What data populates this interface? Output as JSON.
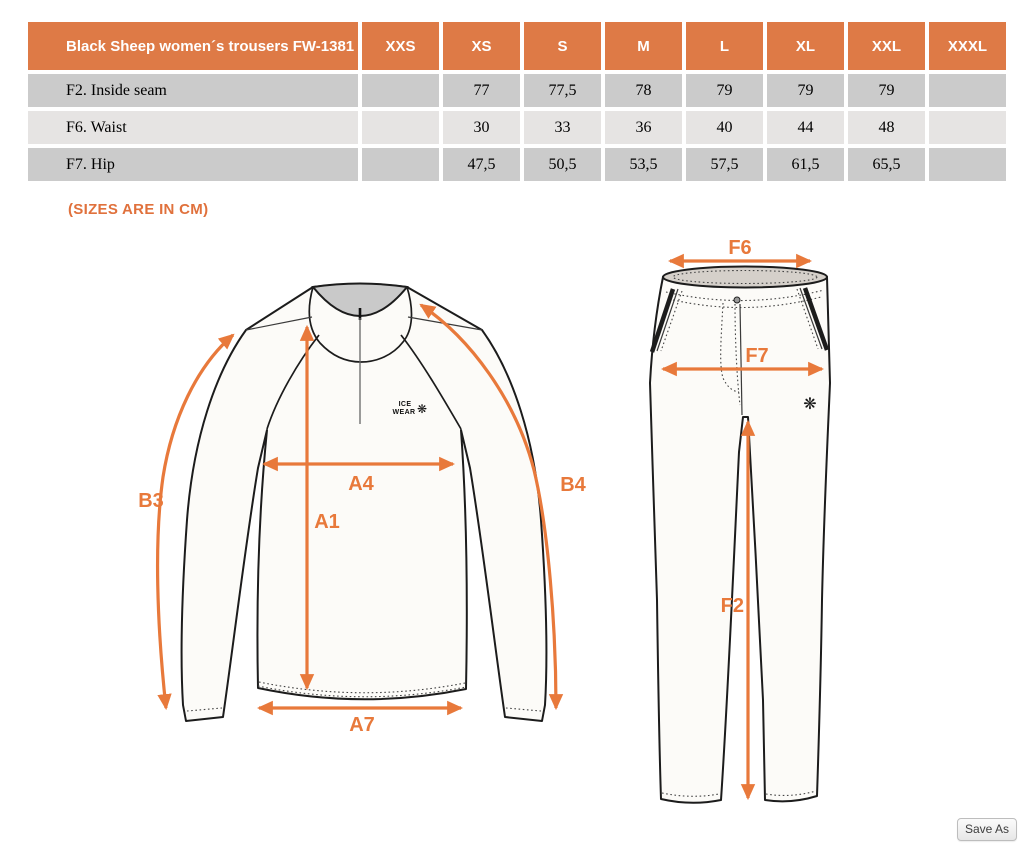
{
  "table": {
    "title": "Black Sheep women´s trousers FW-1381",
    "columns": [
      "XXS",
      "XS",
      "S",
      "M",
      "L",
      "XL",
      "XXL",
      "XXXL"
    ],
    "rows": [
      {
        "label": "F2. Inside seam",
        "values": [
          "",
          "77",
          "77,5",
          "78",
          "79",
          "79",
          "79",
          ""
        ]
      },
      {
        "label": "F6. Waist",
        "values": [
          "",
          "30",
          "33",
          "36",
          "40",
          "44",
          "48",
          ""
        ]
      },
      {
        "label": "F7. Hip",
        "values": [
          "",
          "47,5",
          "50,5",
          "53,5",
          "57,5",
          "61,5",
          "65,5",
          ""
        ]
      }
    ]
  },
  "note": "(SIZES ARE IN CM)",
  "diagram": {
    "shirt": {
      "labels": {
        "b3": "B3",
        "a4": "A4",
        "a1": "A1",
        "b4": "B4",
        "a7": "A7"
      },
      "logo_line1": "ICE",
      "logo_line2": "WEAR",
      "logo_icon": "snowflake-icon",
      "logo_glyph": "❋"
    },
    "trousers": {
      "labels": {
        "f6": "F6",
        "f7": "F7",
        "f2": "F2"
      },
      "logo_icon": "snowflake-icon",
      "logo_glyph": "❋"
    }
  },
  "colors": {
    "header_orange": "#DE7A46",
    "arrow_orange": "#E8793B",
    "row_dark": "#CBCBCB",
    "row_light": "#E6E4E3",
    "collar_gray": "#C9C9C9",
    "waist_gray": "#D5D0CA"
  },
  "save_button": {
    "label": "Save As"
  }
}
